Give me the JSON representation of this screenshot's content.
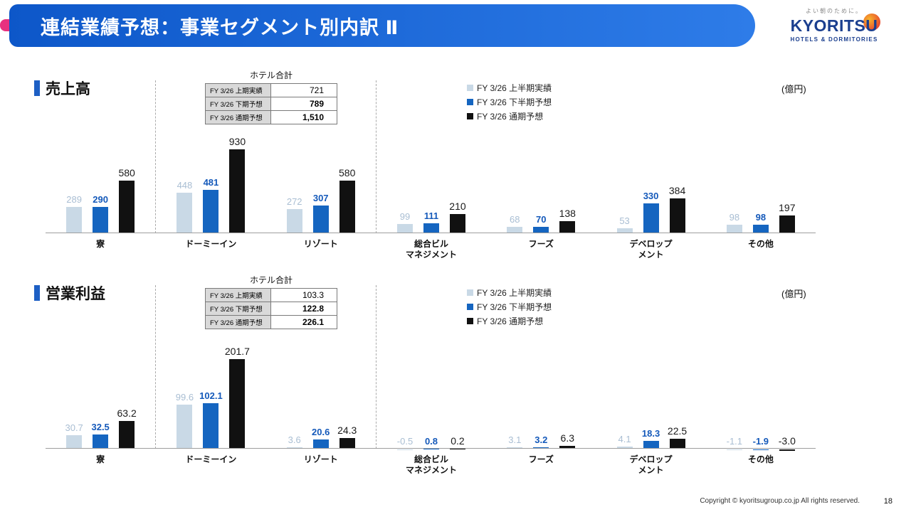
{
  "header": {
    "title": "連結業績予想：事業セグメント別内訳 Ⅱ",
    "logo": {
      "tagline": "よい朝のために。",
      "name": "KYORITSU",
      "subtitle": "HOTELS & DORMITORIES"
    }
  },
  "footer": {
    "copyright": "Copyright © kyoritsugroup.co.jp All rights reserved.",
    "page_number": "18"
  },
  "colors": {
    "banner": "#1668d6",
    "accent_pink": "#e8317f",
    "series": [
      "#c9d9e6",
      "#1565c0",
      "#111111"
    ]
  },
  "chart_data": [
    {
      "type": "bar",
      "section_title": "売上高",
      "unit": "(億円)",
      "summary_table": {
        "title": "ホテル合計",
        "rows": [
          {
            "label": "FY 3/26 上期実績",
            "value": "721",
            "bold": false
          },
          {
            "label": "FY 3/26 下期予想",
            "value": "789",
            "bold": true
          },
          {
            "label": "FY 3/26 通期予想",
            "value": "1,510",
            "bold": true
          }
        ]
      },
      "legend": [
        "FY 3/26 上半期実績",
        "FY 3/26 下半期予想",
        "FY 3/26 通期予想"
      ],
      "categories": [
        "寮",
        "ドーミーイン",
        "リゾート",
        "総合ビル\nマネジメント",
        "フーズ",
        "デベロップ\nメント",
        "その他"
      ],
      "separators_before": [
        1,
        3
      ],
      "series": [
        {
          "name": "FY 3/26 上半期実績",
          "values": [
            289,
            448,
            272,
            99,
            68,
            53,
            98
          ],
          "labels": [
            "289",
            "448",
            "272",
            "99",
            "68",
            "53",
            "98"
          ]
        },
        {
          "name": "FY 3/26 下半期予想",
          "values": [
            290,
            481,
            307,
            111,
            70,
            330,
            98
          ],
          "labels": [
            "290",
            "481",
            "307",
            "111",
            "70",
            "330",
            "98"
          ]
        },
        {
          "name": "FY 3/26 通期予想",
          "values": [
            580,
            930,
            580,
            210,
            138,
            384,
            197
          ],
          "labels": [
            "580",
            "930",
            "580",
            "210",
            "138",
            "384",
            "197"
          ]
        }
      ]
    },
    {
      "type": "bar",
      "section_title": "営業利益",
      "unit": "(億円)",
      "summary_table": {
        "title": "ホテル合計",
        "rows": [
          {
            "label": "FY 3/26 上期実績",
            "value": "103.3",
            "bold": false
          },
          {
            "label": "FY 3/26 下期予想",
            "value": "122.8",
            "bold": true
          },
          {
            "label": "FY 3/26 通期予想",
            "value": "226.1",
            "bold": true
          }
        ]
      },
      "legend": [
        "FY 3/26 上半期実績",
        "FY 3/26 下半期予想",
        "FY 3/26 通期予想"
      ],
      "categories": [
        "寮",
        "ドーミーイン",
        "リゾート",
        "総合ビル\nマネジメント",
        "フーズ",
        "デベロップ\nメント",
        "その他"
      ],
      "separators_before": [
        1,
        3
      ],
      "series": [
        {
          "name": "FY 3/26 上半期実績",
          "values": [
            30.7,
            99.6,
            3.6,
            -0.5,
            3.1,
            4.1,
            -1.1
          ],
          "labels": [
            "30.7",
            "99.6",
            "3.6",
            "-0.5",
            "3.1",
            "4.1",
            "-1.1"
          ]
        },
        {
          "name": "FY 3/26 下半期予想",
          "values": [
            32.5,
            102.1,
            20.6,
            0.8,
            3.2,
            18.3,
            -1.9
          ],
          "labels": [
            "32.5",
            "102.1",
            "20.6",
            "0.8",
            "3.2",
            "18.3",
            "-1.9"
          ]
        },
        {
          "name": "FY 3/26 通期予想",
          "values": [
            63.2,
            201.7,
            24.3,
            0.2,
            6.3,
            22.5,
            -3.0
          ],
          "labels": [
            "63.2",
            "201.7",
            "24.3",
            "0.2",
            "6.3",
            "22.5",
            "-3.0"
          ]
        }
      ]
    }
  ]
}
